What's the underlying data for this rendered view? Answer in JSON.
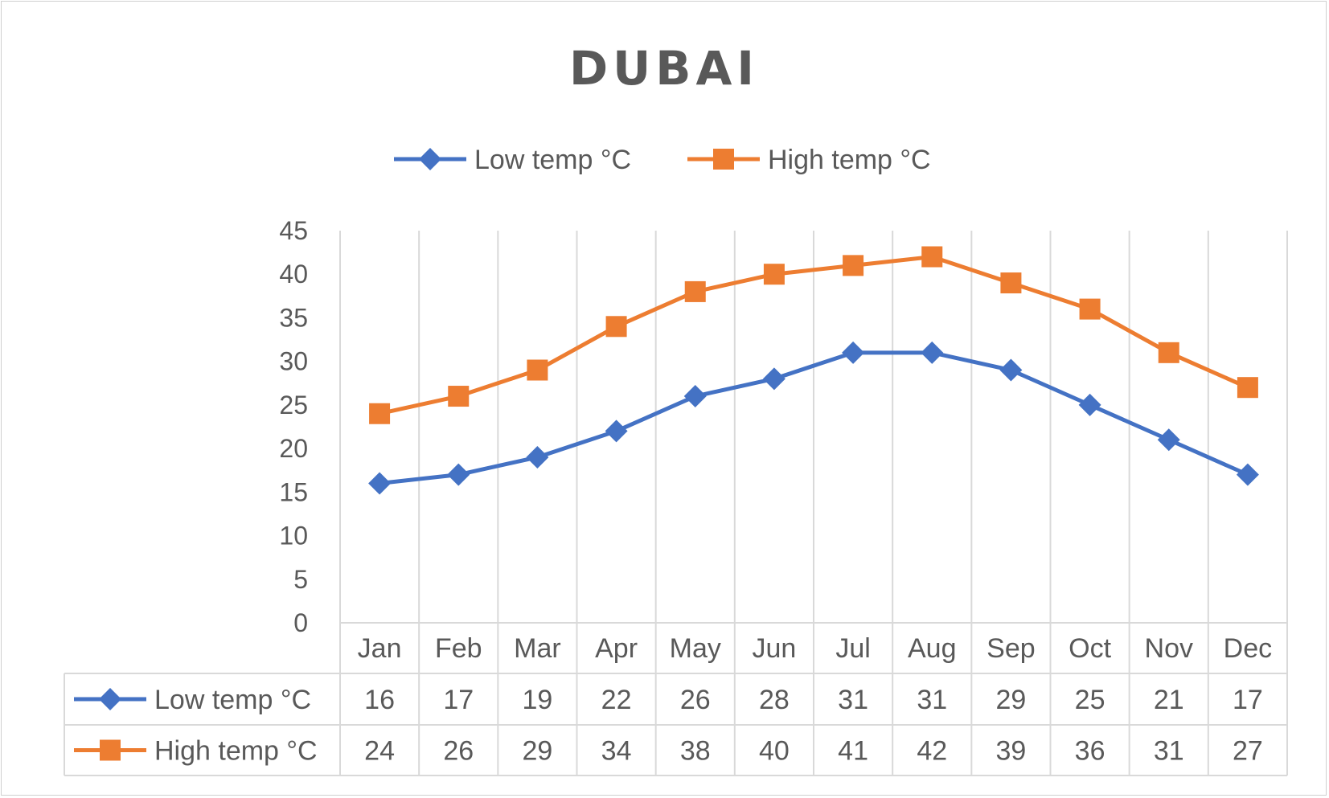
{
  "chart_data": {
    "type": "line",
    "title": "DUBAI",
    "categories": [
      "Jan",
      "Feb",
      "Mar",
      "Apr",
      "May",
      "Jun",
      "Jul",
      "Aug",
      "Sep",
      "Oct",
      "Nov",
      "Dec"
    ],
    "series": [
      {
        "name": "Low temp °C",
        "color": "#4472C4",
        "marker": "diamond",
        "values": [
          16,
          17,
          19,
          22,
          26,
          28,
          31,
          31,
          29,
          25,
          21,
          17
        ]
      },
      {
        "name": "High temp °C",
        "color": "#ED7D31",
        "marker": "square",
        "values": [
          24,
          26,
          29,
          34,
          38,
          40,
          41,
          42,
          39,
          36,
          31,
          27
        ]
      }
    ],
    "ylim": [
      0,
      45
    ],
    "yticks": [
      0,
      5,
      10,
      15,
      20,
      25,
      30,
      35,
      40,
      45
    ],
    "grid": "vertical",
    "legend": "top",
    "data_table": true
  }
}
